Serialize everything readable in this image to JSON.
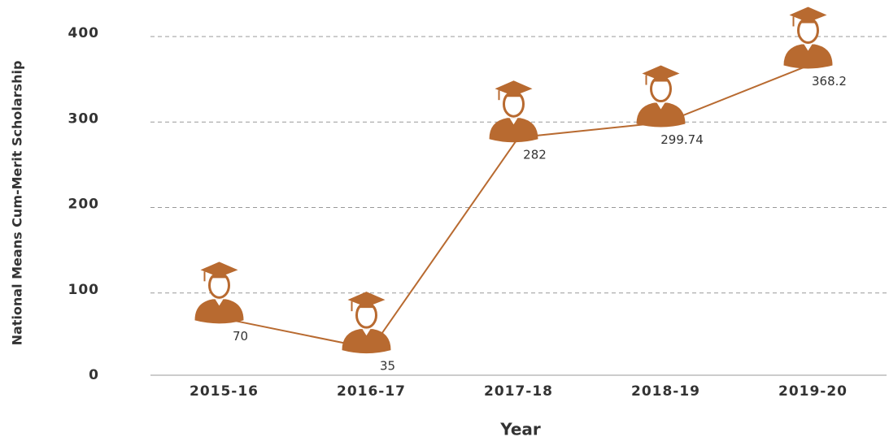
{
  "chart_data": {
    "type": "line",
    "title": null,
    "x_label": "Year",
    "y_label": "National Means Cum-Merit Scholarship",
    "categories": [
      "2015-16",
      "2016-17",
      "2017-18",
      "2018-19",
      "2019-20"
    ],
    "series": [
      {
        "name": "National Means Cum-Merit Scholarship",
        "color": "#b86a30",
        "values": [
          70,
          35,
          282,
          299.74,
          368.2
        ]
      }
    ],
    "ylim": [
      0,
      400
    ],
    "yticks": [
      0,
      100,
      200,
      300,
      400
    ],
    "grid": true
  }
}
